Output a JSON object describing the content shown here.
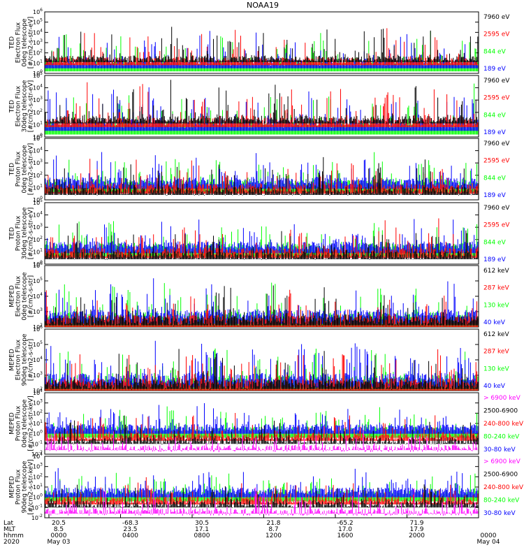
{
  "title": "NOAA19",
  "colors": {
    "black": "#000000",
    "red": "#ff0000",
    "green": "#00ff00",
    "blue": "#0000ff",
    "magenta": "#ff00ff"
  },
  "chart_data": [
    {
      "type": "line",
      "scale": "log",
      "ylim_exp": [
        0,
        6
      ],
      "ylabel": [
        "TED",
        "Electron Flux",
        "0deg telescope",
        "[#/cm2-s-str-eV]"
      ],
      "legend": [
        {
          "label": "7960 eV",
          "color": "black"
        },
        {
          "label": "2595 eV",
          "color": "red"
        },
        {
          "label": "844 eV",
          "color": "green"
        },
        {
          "label": "189 eV",
          "color": "blue"
        }
      ]
    },
    {
      "type": "line",
      "scale": "log",
      "ylim_exp": [
        0,
        5
      ],
      "ylabel": [
        "TED",
        "Electron Flux",
        "30deg telescope",
        "[#/cm2-s-str-eV]"
      ],
      "legend": [
        {
          "label": "7960 eV",
          "color": "black"
        },
        {
          "label": "2595 eV",
          "color": "red"
        },
        {
          "label": "844 eV",
          "color": "green"
        },
        {
          "label": "189 eV",
          "color": "blue"
        }
      ]
    },
    {
      "type": "line",
      "scale": "log",
      "ylim_exp": [
        0,
        5
      ],
      "ylabel": [
        "TED",
        "Proton Flux",
        "0deg telescope",
        "[#/cm2-s-str-eV]"
      ],
      "legend": [
        {
          "label": "7960 eV",
          "color": "black"
        },
        {
          "label": "2595 eV",
          "color": "red"
        },
        {
          "label": "844 eV",
          "color": "green"
        },
        {
          "label": "189 eV",
          "color": "blue"
        }
      ]
    },
    {
      "type": "line",
      "scale": "log",
      "ylim_exp": [
        0,
        5
      ],
      "ylabel": [
        "TED",
        "Proton Flux",
        "30deg telescope",
        "[#/cm2-s-str-eV]"
      ],
      "legend": [
        {
          "label": "7960 eV",
          "color": "black"
        },
        {
          "label": "2595 eV",
          "color": "red"
        },
        {
          "label": "844 eV",
          "color": "green"
        },
        {
          "label": "189 eV",
          "color": "blue"
        }
      ]
    },
    {
      "type": "line",
      "scale": "log",
      "ylim_exp": [
        2,
        6
      ],
      "ylabel": [
        "MEPED",
        "Electron Flux",
        "0deg telescope",
        "[#/cm2-s-str]"
      ],
      "legend": [
        {
          "label": "612 keV",
          "color": "black"
        },
        {
          "label": "287 keV",
          "color": "red"
        },
        {
          "label": "130 keV",
          "color": "green"
        },
        {
          "label": "40 keV",
          "color": "blue"
        }
      ]
    },
    {
      "type": "line",
      "scale": "log",
      "ylim_exp": [
        2,
        6
      ],
      "ylabel": [
        "MEPED",
        "Electron Flux",
        "90deg telescope",
        "[#/cm2-s-str]"
      ],
      "legend": [
        {
          "label": "612 keV",
          "color": "black"
        },
        {
          "label": "287 keV",
          "color": "red"
        },
        {
          "label": "130 keV",
          "color": "green"
        },
        {
          "label": "40 keV",
          "color": "blue"
        }
      ]
    },
    {
      "type": "line",
      "scale": "log",
      "ylim_exp": [
        -2,
        4
      ],
      "ylabel": [
        "MEPED",
        "Proton Flux",
        "0deg telescope",
        "[#/cm2-s-str-keV]"
      ],
      "legend": [
        {
          "label": "> 6900 keV",
          "color": "magenta"
        },
        {
          "label": "2500-6900",
          "color": "black"
        },
        {
          "label": "240-800 keV",
          "color": "red"
        },
        {
          "label": "80-240 keV",
          "color": "green"
        },
        {
          "label": "30-80 keV",
          "color": "blue"
        }
      ]
    },
    {
      "type": "line",
      "scale": "log",
      "ylim_exp": [
        -2,
        4
      ],
      "ylabel": [
        "MEPED",
        "Proton Flux",
        "90deg telescope",
        "[#/cm2-s-str-keV]"
      ],
      "legend": [
        {
          "label": "> 6900 keV",
          "color": "magenta"
        },
        {
          "label": "2500-6900",
          "color": "black"
        },
        {
          "label": "240-800 keV",
          "color": "red"
        },
        {
          "label": "80-240 keV",
          "color": "green"
        },
        {
          "label": "30-80 keV",
          "color": "blue"
        }
      ]
    }
  ],
  "x_axis": {
    "row_labels": [
      "Lat",
      "MLT",
      "hhmm",
      "2020"
    ],
    "ticks": [
      {
        "lat": "20.5",
        "mlt": "8.5",
        "hhmm": "0000",
        "date": "May 03"
      },
      {
        "lat": "-68.3",
        "mlt": "23.5",
        "hhmm": "0400",
        "date": ""
      },
      {
        "lat": "30.5",
        "mlt": "17.1",
        "hhmm": "0800",
        "date": ""
      },
      {
        "lat": "21.8",
        "mlt": "8.7",
        "hhmm": "1200",
        "date": ""
      },
      {
        "lat": "-65.2",
        "mlt": "17.0",
        "hhmm": "1600",
        "date": ""
      },
      {
        "lat": "71.9",
        "mlt": "17.9",
        "hhmm": "2000",
        "date": ""
      },
      {
        "lat": "",
        "mlt": "",
        "hhmm": "0000",
        "date": "May 04"
      }
    ]
  }
}
